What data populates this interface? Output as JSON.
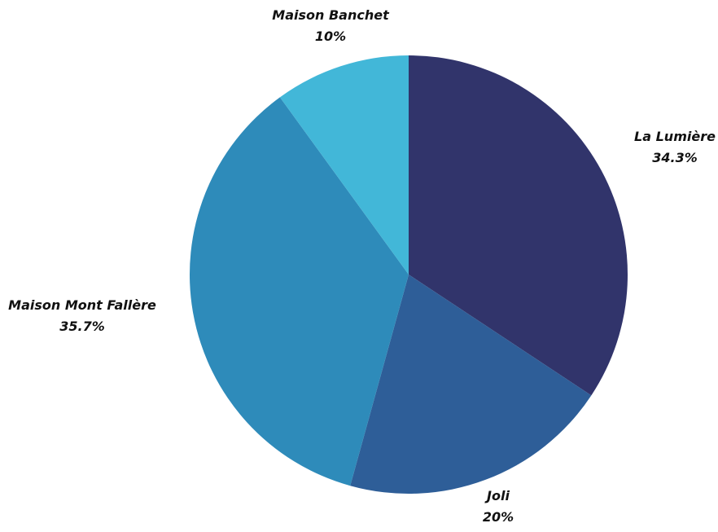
{
  "chart_data": {
    "type": "pie",
    "start_angle_deg": 0,
    "direction": "clockwise",
    "legend": "none",
    "slices": [
      {
        "label": "La Lumière",
        "value": 34.3,
        "value_label": "34.3%",
        "color": "#31346b"
      },
      {
        "label": "Joli",
        "value": 20,
        "value_label": "20%",
        "color": "#2e5e98"
      },
      {
        "label": "Maison Mont Fallère",
        "value": 35.7,
        "value_label": "35.7%",
        "color": "#2e8bba"
      },
      {
        "label": "Maison Banchet",
        "value": 10,
        "value_label": "10%",
        "color": "#42b7d8"
      }
    ]
  }
}
